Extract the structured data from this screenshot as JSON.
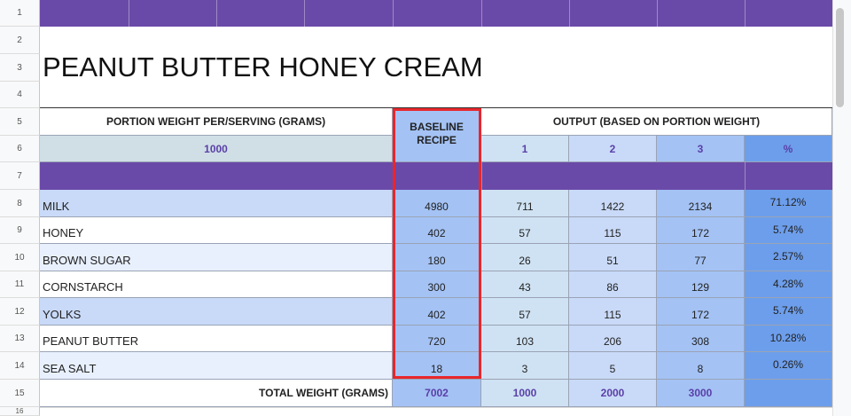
{
  "row_numbers": [
    "1",
    "2",
    "3",
    "4",
    "5",
    "6",
    "7",
    "8",
    "9",
    "10",
    "11",
    "12",
    "13",
    "14",
    "15",
    "16"
  ],
  "title": "PEANUT BUTTER HONEY CREAM",
  "portion_label": "PORTION WEIGHT PER/SERVING (GRAMS)",
  "portion_value": "1000",
  "baseline_label": "BASELINE RECIPE",
  "output_label": "OUTPUT (BASED ON PORTION WEIGHT)",
  "output_cols": [
    "1",
    "2",
    "3",
    "%"
  ],
  "ingredients": [
    {
      "name": "MILK",
      "baseline": "4980",
      "o1": "711",
      "o2": "1422",
      "o3": "2134",
      "pct": "71.12%"
    },
    {
      "name": "HONEY",
      "baseline": "402",
      "o1": "57",
      "o2": "115",
      "o3": "172",
      "pct": "5.74%"
    },
    {
      "name": "BROWN SUGAR",
      "baseline": "180",
      "o1": "26",
      "o2": "51",
      "o3": "77",
      "pct": "2.57%"
    },
    {
      "name": "CORNSTARCH",
      "baseline": "300",
      "o1": "43",
      "o2": "86",
      "o3": "129",
      "pct": "4.28%"
    },
    {
      "name": "YOLKS",
      "baseline": "402",
      "o1": "57",
      "o2": "115",
      "o3": "172",
      "pct": "5.74%"
    },
    {
      "name": "PEANUT BUTTER",
      "baseline": "720",
      "o1": "103",
      "o2": "206",
      "o3": "308",
      "pct": "10.28%"
    },
    {
      "name": "SEA SALT",
      "baseline": "18",
      "o1": "3",
      "o2": "5",
      "o3": "8",
      "pct": "0.26%"
    }
  ],
  "total_label": "TOTAL WEIGHT (GRAMS)",
  "totals": {
    "baseline": "7002",
    "o1": "1000",
    "o2": "2000",
    "o3": "3000"
  },
  "colors": {
    "purple": "#6a4aa8",
    "highlight": "#e8262b"
  }
}
